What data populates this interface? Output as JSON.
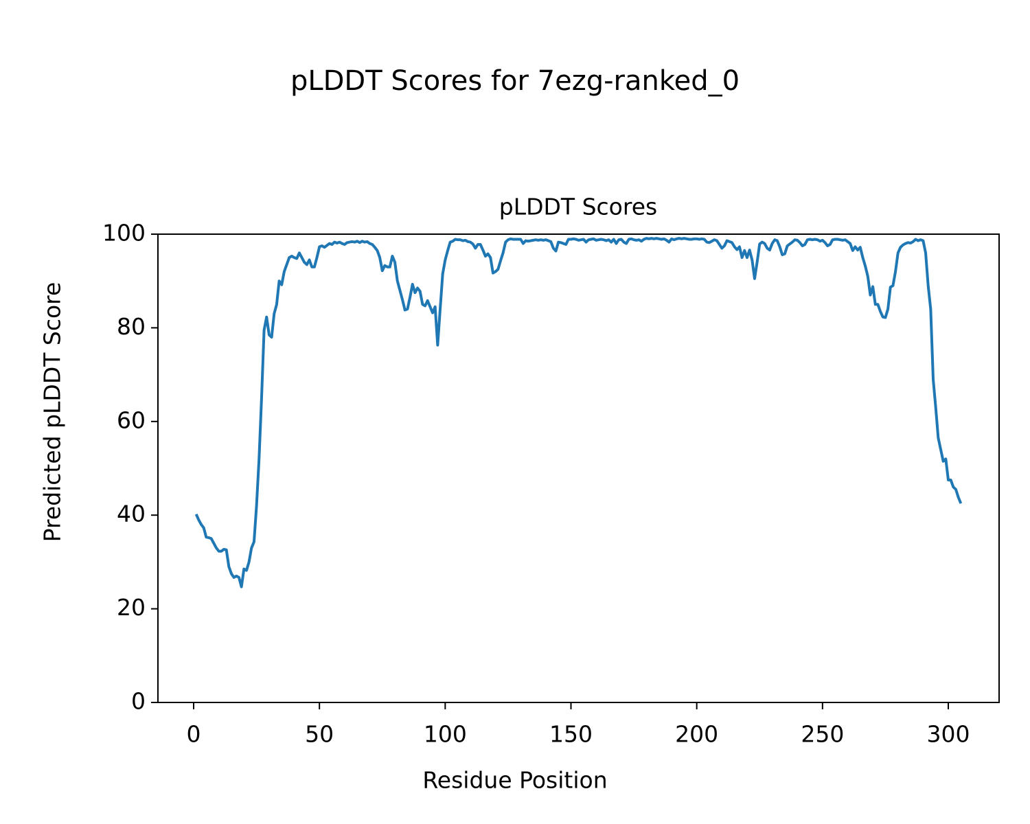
{
  "chart_data": {
    "type": "line",
    "suptitle": "pLDDT Scores for 7ezg-ranked_0",
    "title": "pLDDT Scores",
    "xlabel": "Residue Position",
    "ylabel": "Predicted pLDDT Score",
    "color": "#1f77b4",
    "xlim": [
      -14.2,
      320.2
    ],
    "xticks": [
      0,
      50,
      100,
      150,
      200,
      250,
      300
    ],
    "ylim": [
      0,
      100
    ],
    "yticks": [
      0,
      20,
      40,
      60,
      80,
      100
    ],
    "x": [
      1,
      2,
      3,
      4,
      5,
      6,
      7,
      8,
      9,
      10,
      11,
      12,
      13,
      14,
      15,
      16,
      17,
      18,
      19,
      20,
      21,
      22,
      23,
      24,
      25,
      26,
      27,
      28,
      29,
      30,
      31,
      32,
      33,
      34,
      35,
      36,
      37,
      38,
      39,
      40,
      41,
      42,
      43,
      44,
      45,
      46,
      47,
      48,
      49,
      50,
      51,
      52,
      53,
      54,
      55,
      56,
      57,
      58,
      59,
      60,
      61,
      62,
      63,
      64,
      65,
      66,
      67,
      68,
      69,
      70,
      71,
      72,
      73,
      74,
      75,
      76,
      77,
      78,
      79,
      80,
      81,
      82,
      83,
      84,
      85,
      86,
      87,
      88,
      89,
      90,
      91,
      92,
      93,
      94,
      95,
      96,
      97,
      98,
      99,
      100,
      101,
      102,
      103,
      104,
      105,
      106,
      107,
      108,
      109,
      110,
      111,
      112,
      113,
      114,
      115,
      116,
      117,
      118,
      119,
      120,
      121,
      122,
      123,
      124,
      125,
      126,
      127,
      128,
      129,
      130,
      131,
      132,
      133,
      134,
      135,
      136,
      137,
      138,
      139,
      140,
      141,
      142,
      143,
      144,
      145,
      146,
      147,
      148,
      149,
      150,
      151,
      152,
      153,
      154,
      155,
      156,
      157,
      158,
      159,
      160,
      161,
      162,
      163,
      164,
      165,
      166,
      167,
      168,
      169,
      170,
      171,
      172,
      173,
      174,
      175,
      176,
      177,
      178,
      179,
      180,
      181,
      182,
      183,
      184,
      185,
      186,
      187,
      188,
      189,
      190,
      191,
      192,
      193,
      194,
      195,
      196,
      197,
      198,
      199,
      200,
      201,
      202,
      203,
      204,
      205,
      206,
      207,
      208,
      209,
      210,
      211,
      212,
      213,
      214,
      215,
      216,
      217,
      218,
      219,
      220,
      221,
      222,
      223,
      224,
      225,
      226,
      227,
      228,
      229,
      230,
      231,
      232,
      233,
      234,
      235,
      236,
      237,
      238,
      239,
      240,
      241,
      242,
      243,
      244,
      245,
      246,
      247,
      248,
      249,
      250,
      251,
      252,
      253,
      254,
      255,
      256,
      257,
      258,
      259,
      260,
      261,
      262,
      263,
      264,
      265,
      266,
      267,
      268,
      269,
      270,
      271,
      272,
      273,
      274,
      275,
      276,
      277,
      278,
      279,
      280,
      281,
      282,
      283,
      284,
      285,
      286,
      287,
      288,
      289,
      290,
      291,
      292,
      293,
      294,
      295,
      296,
      297,
      298,
      299,
      300,
      301,
      302,
      303,
      304,
      305
    ],
    "values": [
      40.2,
      39,
      38,
      37.3,
      35.3,
      35.2,
      35,
      34,
      33,
      32.3,
      32.3,
      32.7,
      32.6,
      29,
      27.5,
      26.7,
      27,
      26.7,
      24.7,
      28.5,
      28.2,
      30,
      33,
      34.3,
      42,
      52,
      65,
      79.5,
      82.3,
      78.5,
      78,
      83,
      85,
      90,
      89.2,
      92,
      93.5,
      95,
      95.3,
      95,
      94.8,
      96,
      95,
      94,
      93.5,
      94.5,
      93,
      93,
      95,
      97.3,
      97.5,
      97.2,
      97.6,
      98,
      97.8,
      98.3,
      98.1,
      98.3,
      98,
      97.8,
      98.2,
      98.3,
      98.4,
      98.3,
      98.5,
      98.2,
      98.5,
      98.3,
      98.4,
      98,
      97.8,
      97.2,
      96.5,
      95,
      92.2,
      93.3,
      93,
      93,
      95.3,
      94,
      90,
      88,
      86,
      83.8,
      84,
      86.5,
      89.3,
      87.5,
      88.5,
      87.8,
      85,
      84.7,
      85.8,
      84.5,
      83.2,
      84.5,
      76.3,
      84,
      91.5,
      94.5,
      96.5,
      98.3,
      98.5,
      98.9,
      98.8,
      98.8,
      98.6,
      98.7,
      98.4,
      98.3,
      97.9,
      97,
      97.8,
      97.8,
      96.6,
      95.3,
      95.8,
      95,
      91.7,
      92,
      92.5,
      94.3,
      96,
      98.3,
      98.8,
      99,
      98.9,
      98.9,
      98.9,
      98.9,
      98,
      98.6,
      98.5,
      98.6,
      98.7,
      98.8,
      98.7,
      98.8,
      98.7,
      98.8,
      98.6,
      98.4,
      97,
      96.4,
      98.3,
      98.2,
      98,
      97.8,
      98.9,
      98.9,
      99,
      98.9,
      98.7,
      98.8,
      98.9,
      98.3,
      98.8,
      98.9,
      99,
      98.7,
      98.8,
      98.9,
      98.8,
      98.6,
      98.8,
      98.3,
      98.9,
      98,
      98.8,
      98.9,
      98.3,
      98,
      98.9,
      99,
      98.8,
      98.7,
      98.8,
      98.5,
      98.9,
      99.1,
      99,
      99.1,
      99,
      99.1,
      99,
      98.9,
      99,
      98.7,
      98.3,
      99,
      98.8,
      99,
      99.1,
      99,
      99.1,
      99,
      98.9,
      98.9,
      99,
      99,
      98.9,
      99,
      98.9,
      98.3,
      98.2,
      98.5,
      98.8,
      98.6,
      97.8,
      97,
      97.5,
      98.6,
      98.4,
      98.2,
      97.3,
      96.7,
      97.3,
      95,
      96.5,
      95,
      96.6,
      94.5,
      90.5,
      94,
      97.9,
      98.3,
      98,
      97,
      96.6,
      98,
      98.8,
      98.6,
      97.3,
      95.6,
      95.8,
      97.5,
      97.9,
      98.3,
      98.8,
      98.7,
      98.2,
      97.5,
      97.8,
      98.8,
      98.9,
      98.8,
      98.9,
      98.8,
      98.5,
      98.7,
      98.2,
      97.5,
      97.8,
      98.8,
      98.9,
      98.9,
      98.8,
      98.7,
      98.8,
      98.4,
      98,
      96.5,
      97.3,
      96.6,
      97.2,
      95,
      93.2,
      91,
      87,
      88.8,
      85,
      85,
      83.5,
      82.3,
      82.2,
      84,
      88.7,
      89,
      92,
      96,
      97.2,
      97.7,
      98,
      98.2,
      98.1,
      98.4,
      98.9,
      98.6,
      98.8,
      98.6,
      96,
      89,
      84,
      69,
      63,
      56.5,
      54,
      51.5,
      52,
      47.5,
      47.5,
      46,
      45.5,
      43.8,
      42.5
    ]
  }
}
